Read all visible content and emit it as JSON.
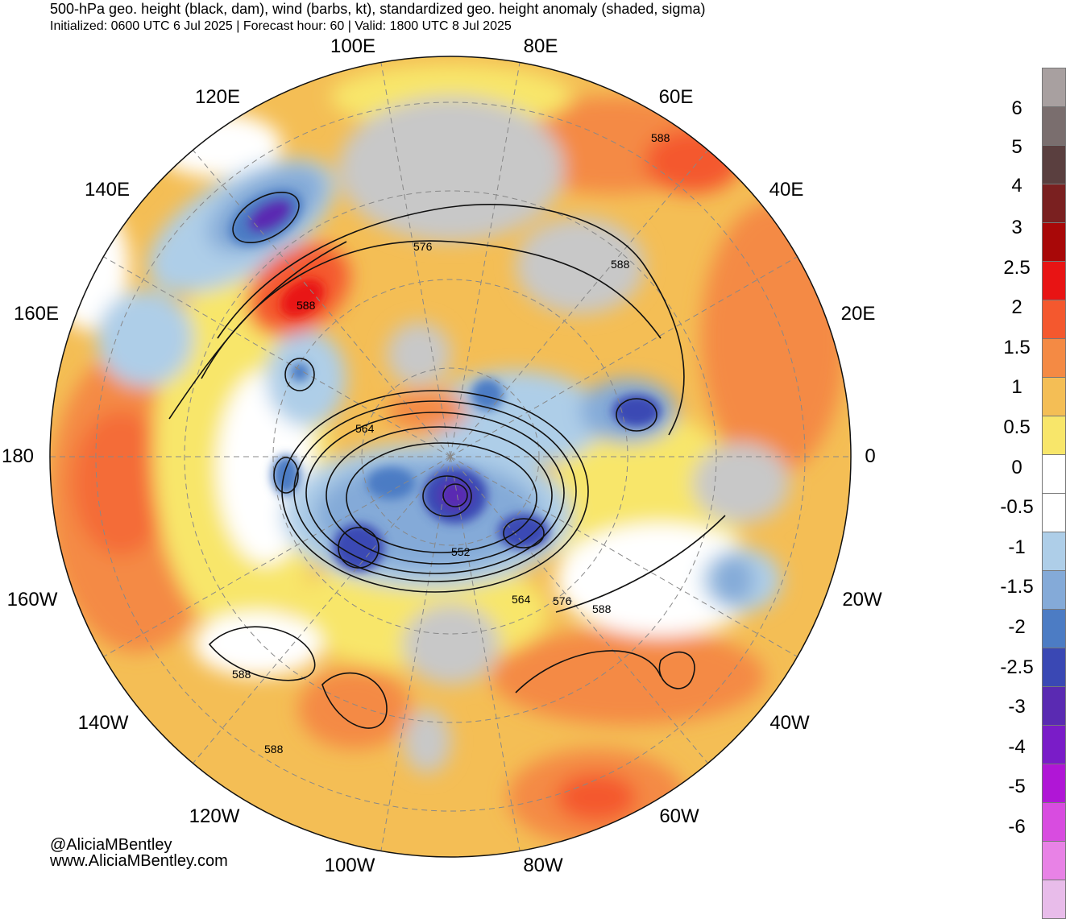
{
  "header": {
    "title": "500-hPa geo. height (black, dam), wind (barbs, kt), standardized geo. height anomaly (shaded, sigma)",
    "subtitle": "Initialized: 0600 UTC 6 Jul 2025 | Forecast hour: 60 | Valid: 1800 UTC 8 Jul 2025"
  },
  "longitude_labels": [
    "100E",
    "80E",
    "120E",
    "60E",
    "140E",
    "40E",
    "160E",
    "20E",
    "180",
    "0",
    "160W",
    "20W",
    "140W",
    "40W",
    "120W",
    "60W",
    "100W",
    "80W"
  ],
  "height_contour_labels": [
    "588",
    "576",
    "588",
    "588",
    "564",
    "552",
    "564",
    "576",
    "588",
    "588",
    "588"
  ],
  "colorbar": {
    "labels": [
      "6",
      "5",
      "4",
      "3",
      "2.5",
      "2",
      "1.5",
      "1",
      "0.5",
      "0",
      "-0.5",
      "-1",
      "-1.5",
      "-2",
      "-2.5",
      "-3",
      "-4",
      "-5",
      "-6"
    ],
    "colors": [
      "#a8a0a0",
      "#7a6e6e",
      "#5a3f3f",
      "#7a2020",
      "#a80808",
      "#e81414",
      "#f4582e",
      "#f48a44",
      "#f4be55",
      "#f8e66a",
      "#ffffff",
      "#ffffff",
      "#aecee8",
      "#84aad8",
      "#4c7cc4",
      "#3a48b4",
      "#5a2ab2",
      "#7a1cc8",
      "#b016d6",
      "#d84ce0",
      "#e882e6",
      "#e8bcea"
    ]
  },
  "credits": {
    "handle": "@AliciaMBentley",
    "website": "www.AliciaMBentley.com"
  }
}
